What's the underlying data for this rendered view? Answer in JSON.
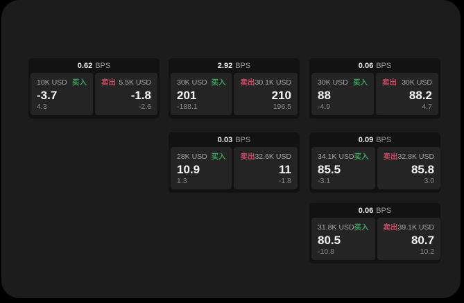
{
  "labels": {
    "bps_unit": "BPS",
    "buy": "买入",
    "sell": "卖出"
  },
  "colors": {
    "buy_green": "#3aa35e",
    "sell_red": "#c54a62",
    "window_bg": "#1c1c1c",
    "card_bg": "#121212",
    "panel_bg": "#242424"
  },
  "cards": [
    {
      "bps": "0.62",
      "buy": {
        "amount": "10K USD",
        "value": "-3.7",
        "delta": "4.3"
      },
      "sell": {
        "amount": "5.5K USD",
        "value": "-1.8",
        "delta": "-2.6"
      }
    },
    {
      "bps": "2.92",
      "buy": {
        "amount": "30K USD",
        "value": "201",
        "delta": "-188.1"
      },
      "sell": {
        "amount": "30.1K USD",
        "value": "210",
        "delta": "196.5"
      }
    },
    {
      "bps": "0.06",
      "buy": {
        "amount": "30K USD",
        "value": "88",
        "delta": "-4.9"
      },
      "sell": {
        "amount": "30K USD",
        "value": "88.2",
        "delta": "4.7"
      }
    },
    {
      "bps": "0.03",
      "buy": {
        "amount": "28K USD",
        "value": "10.9",
        "delta": "1.3"
      },
      "sell": {
        "amount": "32.6K USD",
        "value": "11",
        "delta": "-1.8"
      }
    },
    {
      "bps": "0.09",
      "buy": {
        "amount": "34.1K USD",
        "value": "85.5",
        "delta": "-3.1"
      },
      "sell": {
        "amount": "32.8K USD",
        "value": "85.8",
        "delta": "3.0"
      }
    },
    {
      "bps": "0.06",
      "buy": {
        "amount": "31.8K USD",
        "value": "80.5",
        "delta": "-10.8"
      },
      "sell": {
        "amount": "39.1K USD",
        "value": "80.7",
        "delta": "10.2"
      }
    }
  ]
}
